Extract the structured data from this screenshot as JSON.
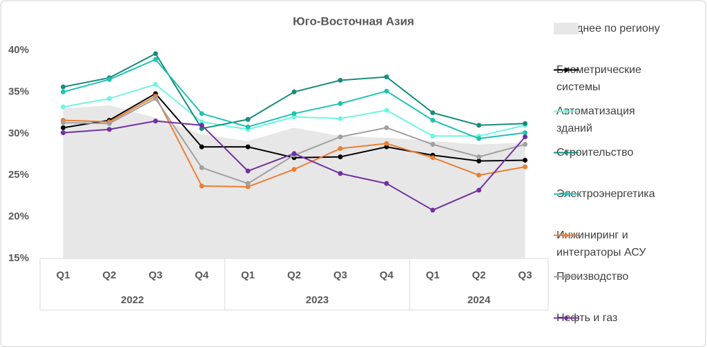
{
  "chart_data": {
    "type": "line",
    "title": "Юго-Восточная Азия",
    "categories": [
      "Q1",
      "Q2",
      "Q3",
      "Q4",
      "Q1",
      "Q2",
      "Q3",
      "Q4",
      "Q1",
      "Q2",
      "Q3"
    ],
    "category_groups": [
      {
        "label": "2022",
        "count": 4
      },
      {
        "label": "2023",
        "count": 4
      },
      {
        "label": "2024",
        "count": 3
      }
    ],
    "ylim": [
      15,
      40
    ],
    "yticks": [
      {
        "value": 15,
        "label": "15%"
      },
      {
        "value": 20,
        "label": "20%"
      },
      {
        "value": 25,
        "label": "25%"
      },
      {
        "value": 30,
        "label": "30%"
      },
      {
        "value": 35,
        "label": "35%"
      },
      {
        "value": 40,
        "label": "40%"
      }
    ],
    "grid": false,
    "legend": "right",
    "series": [
      {
        "name": "Среднее по региону",
        "type": "area",
        "color": "#e7e7e7",
        "values": [
          33.0,
          33.4,
          31.9,
          29.9,
          29.1,
          30.7,
          29.7,
          29.5,
          29.1,
          28.7,
          28.9
        ]
      },
      {
        "name": "Биометрические системы",
        "color": "#000000",
        "values": [
          30.7,
          31.6,
          34.8,
          28.4,
          28.4,
          27.1,
          27.2,
          28.4,
          27.4,
          26.7,
          26.8
        ]
      },
      {
        "name": "Автоматизация зданий",
        "color": "#6ff5e0",
        "values": [
          33.2,
          34.2,
          35.9,
          31.4,
          30.5,
          32.0,
          31.8,
          32.8,
          29.7,
          29.7,
          31.0
        ]
      },
      {
        "name": "Строительство",
        "color": "#178c7a",
        "values": [
          35.6,
          36.7,
          39.6,
          30.6,
          31.7,
          35.0,
          36.4,
          36.8,
          32.5,
          31.0,
          31.2
        ]
      },
      {
        "name": "Электроэнергетика",
        "color": "#1fc2b2",
        "values": [
          35.0,
          36.5,
          38.9,
          32.4,
          30.8,
          32.4,
          33.6,
          35.1,
          31.6,
          29.4,
          30.1
        ]
      },
      {
        "name": "Инжиниринг и интеграторы АСУ",
        "color": "#ed7d31",
        "values": [
          31.6,
          31.4,
          34.5,
          23.7,
          23.6,
          25.7,
          28.2,
          28.8,
          27.1,
          25.0,
          26.0
        ]
      },
      {
        "name": "Производство",
        "color": "#a0a0a0",
        "values": [
          31.3,
          31.2,
          34.2,
          25.9,
          24.0,
          27.4,
          29.6,
          30.7,
          28.7,
          27.2,
          28.7
        ]
      },
      {
        "name": "Нефть и газ",
        "color": "#7030a0",
        "values": [
          30.1,
          30.5,
          31.5,
          31.0,
          25.5,
          27.6,
          25.2,
          24.0,
          20.8,
          23.2,
          29.6
        ]
      }
    ]
  }
}
